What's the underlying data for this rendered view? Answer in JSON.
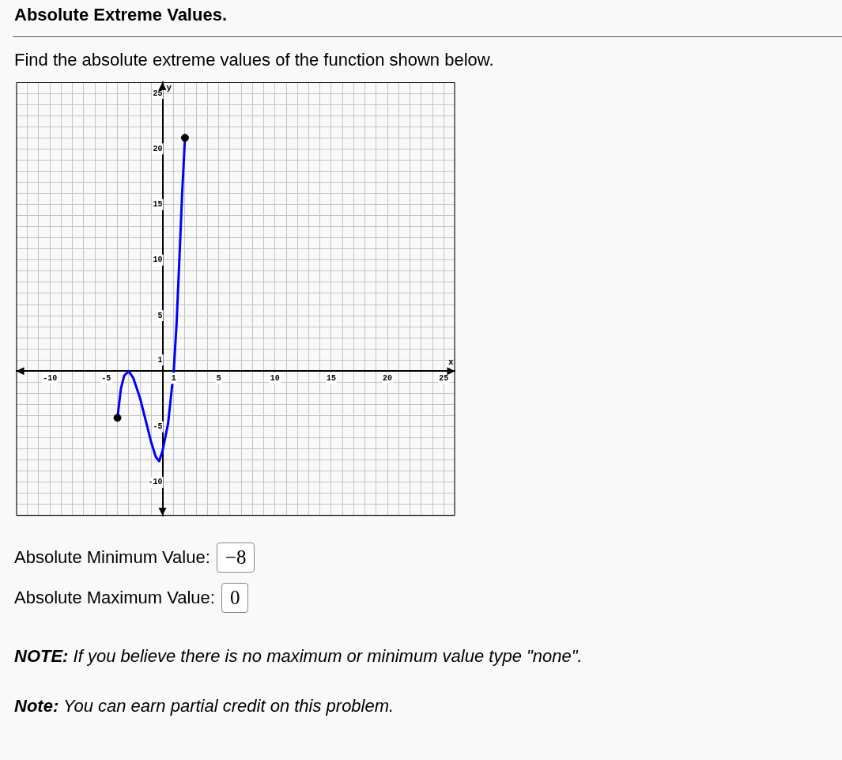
{
  "chart_data": {
    "type": "line",
    "title": "Absolute Extreme Values.",
    "subtitle": "Find the absolute extreme values of the function shown below.",
    "xlabel": "x",
    "ylabel": "y",
    "xlim": [
      -13,
      26
    ],
    "ylim": [
      -13,
      26
    ],
    "xticks": [
      {
        "value": -13,
        "label": null
      },
      {
        "value": -12,
        "label": null
      },
      {
        "value": -11,
        "label": null
      },
      -10,
      {
        "value": -9,
        "label": null
      },
      {
        "value": -8,
        "label": null
      },
      {
        "value": -7,
        "label": null
      },
      {
        "value": -6,
        "label": null
      },
      -5,
      {
        "value": -4,
        "label": null
      },
      {
        "value": -3,
        "label": null
      },
      {
        "value": -2,
        "label": null
      },
      {
        "value": -1,
        "label": null
      },
      {
        "value": 0,
        "label": null
      },
      1,
      {
        "value": 2,
        "label": null
      },
      {
        "value": 3,
        "label": null
      },
      {
        "value": 4,
        "label": null
      },
      5,
      {
        "value": 6,
        "label": null
      },
      {
        "value": 7,
        "label": null
      },
      {
        "value": 8,
        "label": null
      },
      {
        "value": 9,
        "label": null
      },
      10,
      {
        "value": 11,
        "label": null
      },
      {
        "value": 12,
        "label": null
      },
      {
        "value": 13,
        "label": null
      },
      {
        "value": 14,
        "label": null
      },
      15,
      {
        "value": 16,
        "label": null
      },
      {
        "value": 17,
        "label": null
      },
      {
        "value": 18,
        "label": null
      },
      {
        "value": 19,
        "label": null
      },
      20,
      {
        "value": 21,
        "label": null
      },
      {
        "value": 22,
        "label": null
      },
      {
        "value": 23,
        "label": null
      },
      {
        "value": 24,
        "label": null
      },
      25,
      {
        "value": 26,
        "label": null
      }
    ],
    "yticks": [
      {
        "value": -13,
        "label": null
      },
      {
        "value": -12,
        "label": null
      },
      {
        "value": -11,
        "label": null
      },
      -10,
      {
        "value": -9,
        "label": null
      },
      {
        "value": -8,
        "label": null
      },
      {
        "value": -7,
        "label": null
      },
      {
        "value": -6,
        "label": null
      },
      -5,
      {
        "value": -4,
        "label": null
      },
      {
        "value": -3,
        "label": null
      },
      {
        "value": -2,
        "label": null
      },
      {
        "value": -1,
        "label": null
      },
      {
        "value": 0,
        "label": null
      },
      1,
      {
        "value": 2,
        "label": null
      },
      {
        "value": 3,
        "label": null
      },
      {
        "value": 4,
        "label": null
      },
      5,
      {
        "value": 6,
        "label": null
      },
      {
        "value": 7,
        "label": null
      },
      {
        "value": 8,
        "label": null
      },
      {
        "value": 9,
        "label": null
      },
      10,
      {
        "value": 11,
        "label": null
      },
      {
        "value": 12,
        "label": null
      },
      {
        "value": 13,
        "label": null
      },
      {
        "value": 14,
        "label": null
      },
      15,
      {
        "value": 16,
        "label": null
      },
      {
        "value": 17,
        "label": null
      },
      {
        "value": 18,
        "label": null
      },
      {
        "value": 19,
        "label": null
      },
      20,
      {
        "value": 21,
        "label": null
      },
      {
        "value": 22,
        "label": null
      },
      {
        "value": 23,
        "label": null
      },
      {
        "value": 24,
        "label": null
      },
      25,
      {
        "value": 26,
        "label": null
      }
    ],
    "grid": true,
    "series": [
      {
        "color": "#0000ff",
        "marker": "none",
        "x": [
          -4,
          -3.7,
          -3.4,
          -3,
          -2.6,
          -2,
          -1.5,
          -1,
          -0.6,
          -0.3,
          0,
          0.5,
          1,
          1.25,
          1.5,
          1.75,
          2
        ],
        "values": [
          -4.2,
          -1.6,
          -0.4,
          0,
          -0.6,
          -2.4,
          -4.4,
          -6.4,
          -7.7,
          -8.1,
          -7.2,
          -4.7,
          0,
          4.2,
          10,
          16,
          21
        ]
      },
      {
        "type": "scatter",
        "marker": "circle",
        "color": "#000000",
        "x": [
          -4,
          2
        ],
        "values": [
          -4.2,
          21
        ]
      }
    ],
    "annotations": [
      "Absolute Minimum Value:",
      "−8",
      "Absolute Maximum Value:",
      "0",
      "NOTE: If you believe there is no maximum or minimum value type \"none\".",
      "Note: You can earn partial credit on this problem."
    ]
  }
}
